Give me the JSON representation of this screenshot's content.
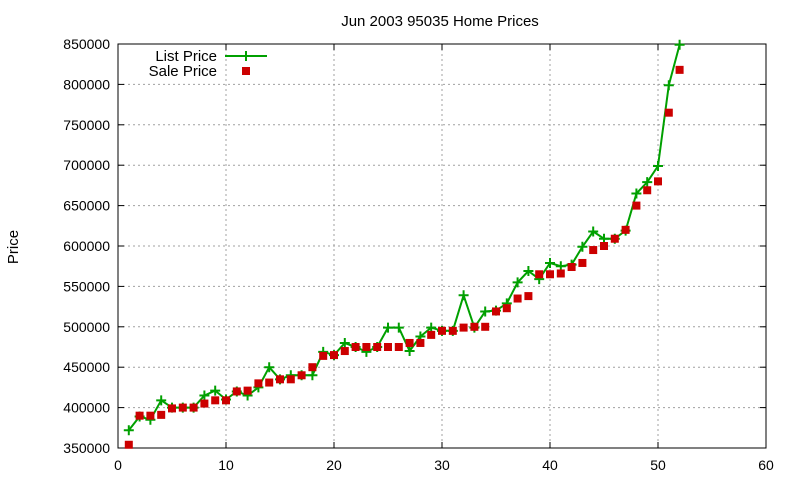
{
  "chart_data": {
    "type": "line",
    "title": "Jun 2003 95035 Home Prices",
    "xlabel": "",
    "ylabel": "Price",
    "xlim": [
      0,
      60
    ],
    "ylim": [
      350000,
      850000
    ],
    "x_ticks": [
      0,
      10,
      20,
      30,
      40,
      50,
      60
    ],
    "y_ticks": [
      350000,
      400000,
      450000,
      500000,
      550000,
      600000,
      650000,
      700000,
      750000,
      800000,
      850000
    ],
    "grid": true,
    "legend_position": "top-left",
    "series": [
      {
        "name": "List Price",
        "style": "line-with-plus-markers",
        "color": "#00a000",
        "x": [
          1,
          2,
          3,
          4,
          5,
          6,
          7,
          8,
          9,
          10,
          11,
          12,
          13,
          14,
          15,
          16,
          17,
          18,
          19,
          20,
          21,
          22,
          23,
          24,
          25,
          26,
          27,
          28,
          29,
          30,
          31,
          32,
          33,
          34,
          35,
          36,
          37,
          38,
          39,
          40,
          41,
          42,
          43,
          44,
          45,
          46,
          47,
          48,
          49,
          50,
          51,
          52
        ],
        "values": [
          372000,
          389000,
          385000,
          409000,
          400000,
          400000,
          400000,
          415000,
          421000,
          410000,
          420000,
          415000,
          425000,
          450000,
          435000,
          440000,
          440000,
          440000,
          469000,
          465000,
          480000,
          475000,
          469000,
          475000,
          499000,
          499000,
          470000,
          488000,
          499000,
          495000,
          495000,
          539000,
          499000,
          519000,
          520000,
          529000,
          555000,
          569000,
          559000,
          579000,
          575000,
          577000,
          599000,
          618000,
          609000,
          609000,
          619000,
          665000,
          679000,
          699000,
          799000,
          849000
        ]
      },
      {
        "name": "Sale Price",
        "style": "square-markers",
        "color": "#cc0000",
        "x": [
          1,
          2,
          3,
          4,
          5,
          6,
          7,
          8,
          9,
          10,
          11,
          12,
          13,
          14,
          15,
          16,
          17,
          18,
          19,
          20,
          21,
          22,
          23,
          24,
          25,
          26,
          27,
          28,
          29,
          30,
          31,
          32,
          33,
          34,
          35,
          36,
          37,
          38,
          39,
          40,
          41,
          42,
          43,
          44,
          45,
          46,
          47,
          48,
          49,
          50,
          51,
          52
        ],
        "values": [
          354000,
          390000,
          390000,
          391000,
          399000,
          400000,
          400000,
          405000,
          409000,
          409000,
          420000,
          421000,
          430000,
          431000,
          435000,
          435000,
          440000,
          450000,
          464000,
          465000,
          470000,
          475000,
          475000,
          475000,
          475000,
          475000,
          480000,
          480000,
          490000,
          495000,
          495000,
          499000,
          500000,
          500000,
          519000,
          523000,
          535000,
          538000,
          565000,
          565000,
          566000,
          574000,
          579000,
          595000,
          600000,
          609000,
          620000,
          650000,
          669000,
          680000,
          765000,
          818000
        ]
      }
    ]
  }
}
